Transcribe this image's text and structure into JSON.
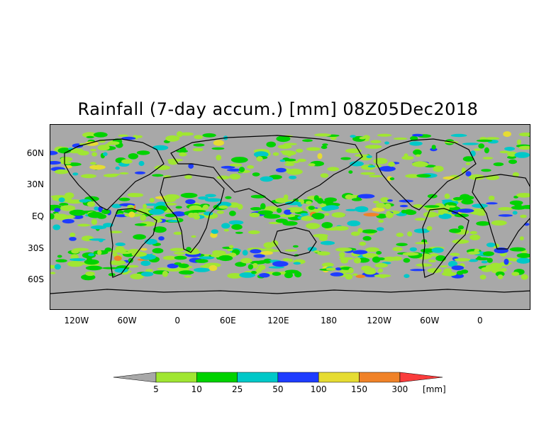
{
  "title": "Rainfall (7-day accum.) [mm] 08Z05Dec2018",
  "colors": {
    "background_dry": "#a8a8a8",
    "coast": "#000000",
    "bins": [
      "#a8a8a8",
      "#a0e632",
      "#00d200",
      "#00c8c8",
      "#1e3cff",
      "#e6dc32",
      "#f08228",
      "#fa3c3c"
    ]
  },
  "map": {
    "type": "global rainfall accumulation",
    "lat_labels": [
      "60N",
      "30N",
      "EQ",
      "30S",
      "60S"
    ],
    "lon_labels": [
      "120W",
      "60W",
      "0",
      "60E",
      "120E",
      "180",
      "120W",
      "60W",
      "0"
    ],
    "lat_values": [
      60,
      30,
      0,
      -30,
      -60
    ],
    "lon_values": [
      -120,
      -60,
      0,
      60,
      120,
      180,
      240,
      300,
      360
    ]
  },
  "colorbar": {
    "labels": [
      "5",
      "10",
      "25",
      "50",
      "100",
      "150",
      "300"
    ],
    "unit": "[mm]"
  }
}
